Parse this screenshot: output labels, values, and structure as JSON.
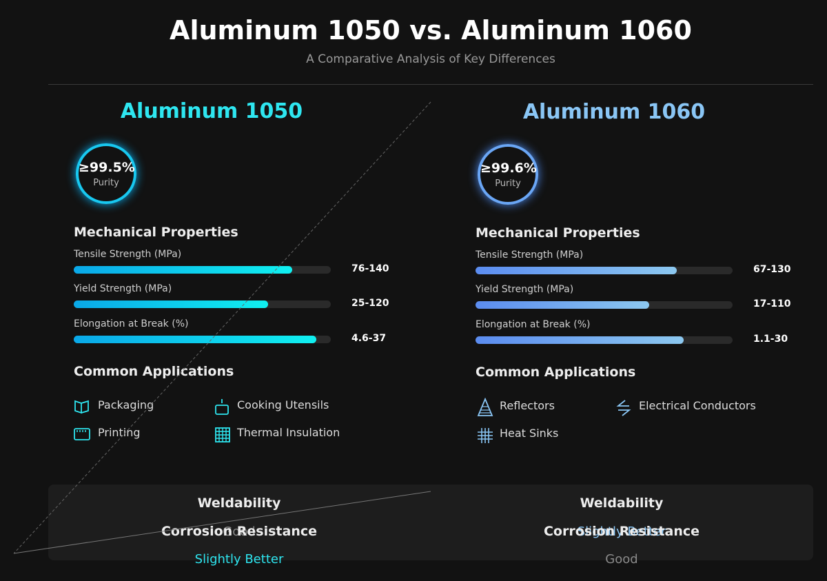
{
  "header": {
    "title": "Aluminum 1050 vs. Aluminum 1060",
    "subtitle": "A Comparative Analysis of Key Differences"
  },
  "columns": [
    {
      "title": "Aluminum 1050",
      "purity": {
        "value": "≥99.5%",
        "label": "Purity"
      },
      "mechanical_title": "Mechanical Properties",
      "properties": [
        {
          "name": "Tensile Strength (MPa)",
          "value": "76-140"
        },
        {
          "name": "Yield Strength (MPa)",
          "value": "25-120"
        },
        {
          "name": "Elongation at Break (%)",
          "value": "4.6-37"
        }
      ],
      "applications_title": "Common Applications",
      "applications": [
        "Packaging",
        "Cooking Utensils",
        "Printing",
        "Thermal Insulation"
      ]
    },
    {
      "title": "Aluminum 1060",
      "purity": {
        "value": "≥99.6%",
        "label": "Purity"
      },
      "mechanical_title": "Mechanical Properties",
      "properties": [
        {
          "name": "Tensile Strength (MPa)",
          "value": "67-130"
        },
        {
          "name": "Yield Strength (MPa)",
          "value": "17-110"
        },
        {
          "name": "Elongation at Break (%)",
          "value": "1.1-30"
        }
      ],
      "applications_title": "Common Applications",
      "applications": [
        "Reflectors",
        "Electrical Conductors",
        "Heat Sinks"
      ]
    }
  ],
  "comparison": [
    {
      "property": "Weldability",
      "values": [
        "Good",
        "Slightly Better"
      ]
    },
    {
      "property": "Corrosion Resistance",
      "values": [
        "Slightly Better",
        "Good"
      ]
    }
  ]
}
